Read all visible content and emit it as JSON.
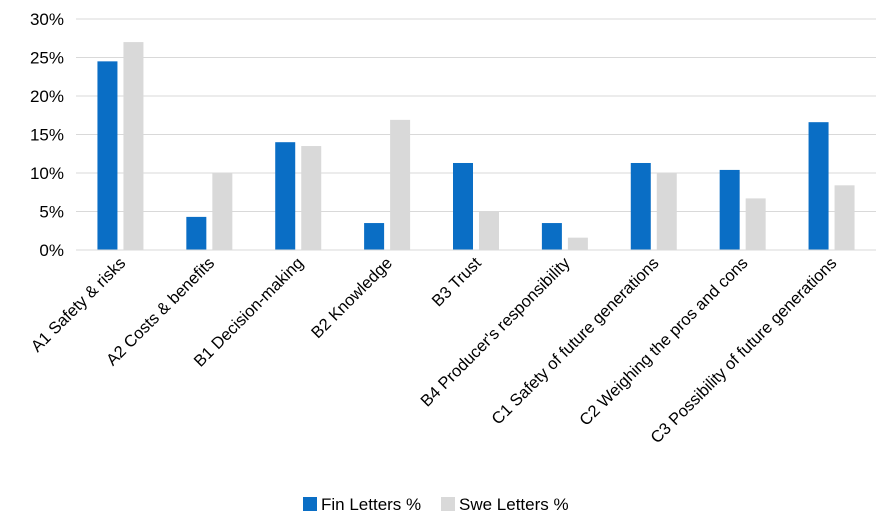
{
  "chart_data": {
    "type": "bar",
    "categories": [
      "A1 Safety & risks",
      "A2 Costs & benefits",
      "B1 Decision-making",
      "B2 Knowledge",
      "B3 Trust",
      "B4 Producer's responsibility",
      "C1 Safety of future generations",
      "C2 Weighing the pros and cons",
      "C3 Possibility of future generations"
    ],
    "series": [
      {
        "name": "Fin Letters  %",
        "color": "#0A6EC5",
        "values": [
          24.5,
          4.3,
          14.0,
          3.5,
          11.3,
          3.5,
          11.3,
          10.4,
          16.6
        ]
      },
      {
        "name": "Swe Letters %",
        "color": "#D9D9D9",
        "values": [
          27.0,
          10.0,
          13.5,
          16.9,
          5.0,
          1.6,
          10.0,
          6.7,
          8.4
        ]
      }
    ],
    "yticks": [
      "0%",
      "5%",
      "10%",
      "15%",
      "20%",
      "25%",
      "30%"
    ],
    "ylim": [
      0,
      30
    ],
    "grid": true,
    "gridColor": "#D9D9D9",
    "legend_position": "bottom"
  }
}
